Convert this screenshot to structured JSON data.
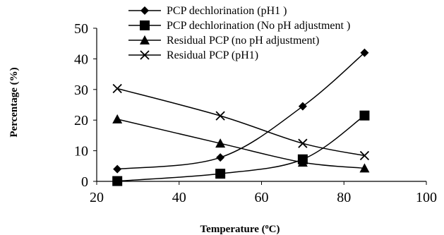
{
  "chart_data": {
    "type": "line",
    "xlabel": "Temperature (",
    "xlabel_sup": "o",
    "xlabel_tail": "C)",
    "ylabel": "Percentage (%)",
    "xlim": [
      20,
      100
    ],
    "ylim": [
      0,
      50
    ],
    "x_ticks": [
      "20",
      "40",
      "60",
      "80",
      "100"
    ],
    "y_ticks": [
      "0",
      "10",
      "20",
      "30",
      "40",
      "50"
    ],
    "grid": false,
    "legend_position": "top-center",
    "series": [
      {
        "name": "PCP dechlorination (pH1 )",
        "marker": "diamond",
        "x": [
          25,
          50,
          70,
          85
        ],
        "values": [
          4.0,
          7.8,
          24.5,
          42.0
        ]
      },
      {
        "name": "PCP dechlorination (No pH adjustment )",
        "marker": "square",
        "x": [
          25,
          50,
          70,
          85
        ],
        "values": [
          0.1,
          2.5,
          7.2,
          21.5
        ]
      },
      {
        "name": "Residual PCP (no pH adjustment)",
        "marker": "triangle",
        "x": [
          25,
          50,
          70,
          85
        ],
        "values": [
          20.3,
          12.4,
          6.2,
          4.3
        ]
      },
      {
        "name": "Residual PCP (pH1)",
        "marker": "cross",
        "x": [
          25,
          50,
          70,
          85
        ],
        "values": [
          30.3,
          21.4,
          12.4,
          8.4
        ]
      }
    ]
  }
}
